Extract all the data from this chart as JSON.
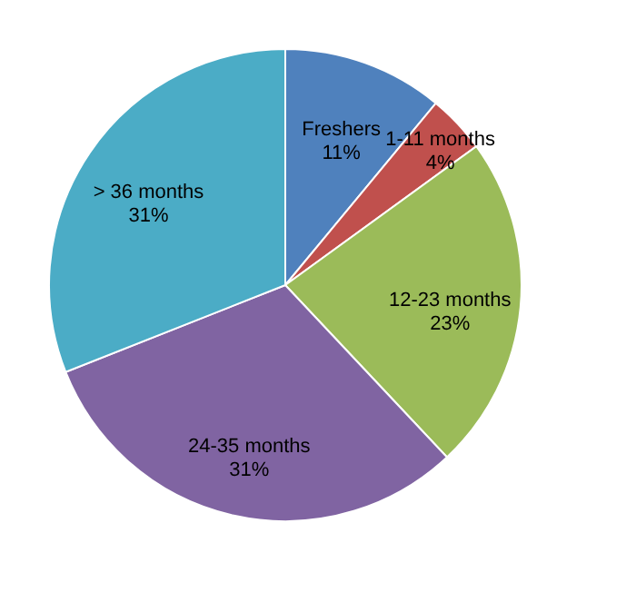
{
  "chart_data": {
    "type": "pie",
    "categories": [
      "Freshers",
      "1-11 months",
      "12-23 months",
      "24-35 months",
      "> 36 months"
    ],
    "values": [
      11,
      4,
      23,
      31,
      31
    ],
    "value_labels": [
      "11%",
      "4%",
      "23%",
      "31%",
      "31%"
    ],
    "colors": [
      "#4f81bd",
      "#c0504d",
      "#9bbb59",
      "#8064a2",
      "#4bacc6"
    ]
  }
}
